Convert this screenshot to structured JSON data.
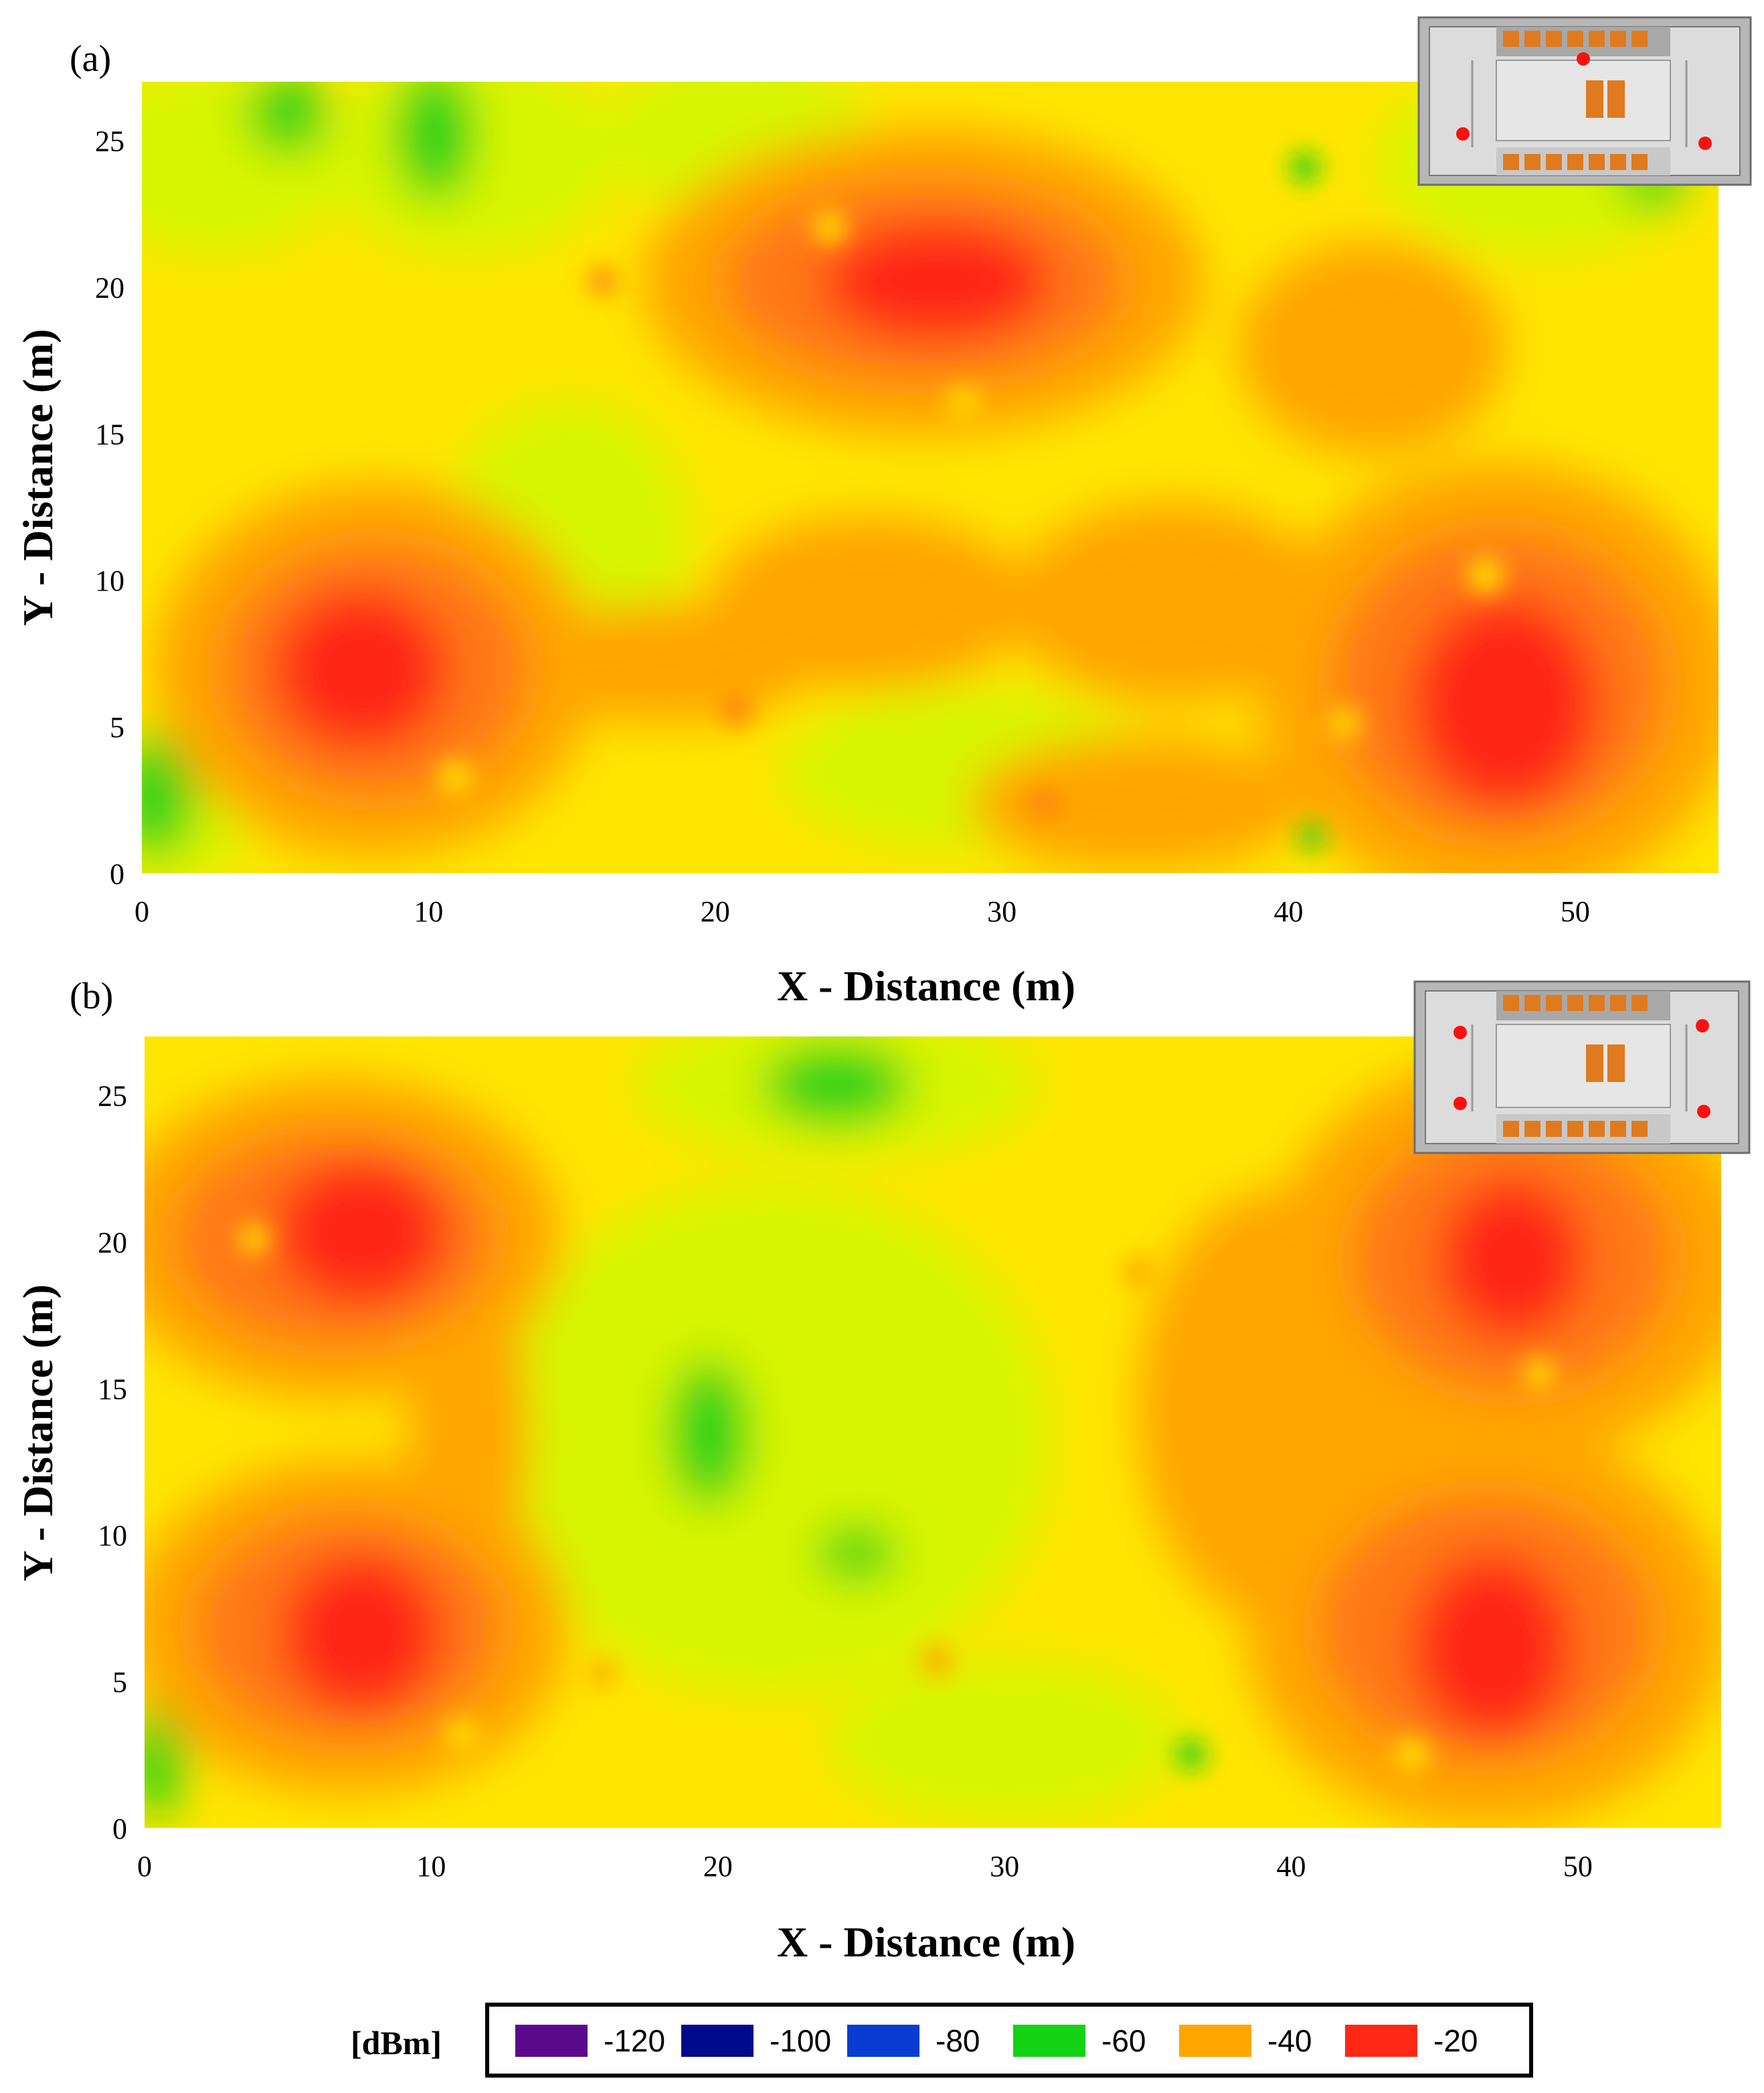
{
  "colors": {
    "purple": "#5b0a8c",
    "navy": "#000a8c",
    "blue": "#0a3cd2",
    "green": "#14d214",
    "yellow_green": "#d7f500",
    "yellow": "#ffe600",
    "orange": "#ffa500",
    "dark_orange": "#ff7814",
    "red": "#ff2814"
  },
  "chart_data": [
    {
      "type": "heatmap",
      "panel_label": "(a)",
      "xlabel": "X - Distance (m)",
      "ylabel": "Y - Distance (m)",
      "xlim": [
        0,
        55
      ],
      "ylim": [
        0,
        27
      ],
      "xticks": [
        0,
        10,
        20,
        30,
        40,
        50
      ],
      "yticks": [
        0,
        5,
        10,
        15,
        20,
        25
      ],
      "units": "dBm",
      "strong_signal_regions": [
        {
          "x": 8,
          "y": 7,
          "value": -20
        },
        {
          "x": 28,
          "y": 20,
          "value": -20
        },
        {
          "x": 47,
          "y": 6,
          "value": -20
        }
      ],
      "weak_signal_regions": [
        {
          "x": 11,
          "y": 24,
          "value": -60
        },
        {
          "x": 5,
          "y": 25,
          "value": -60
        },
        {
          "x": 0,
          "y": 2,
          "value": -60
        }
      ],
      "inset": {
        "type": "floor-plan",
        "access_points": 3
      }
    },
    {
      "type": "heatmap",
      "panel_label": "(b)",
      "xlabel": "X - Distance (m)",
      "ylabel": "Y - Distance (m)",
      "xlim": [
        0,
        55
      ],
      "ylim": [
        0,
        27
      ],
      "xticks": [
        0,
        10,
        20,
        30,
        40,
        50
      ],
      "yticks": [
        0,
        5,
        10,
        15,
        20,
        25
      ],
      "units": "dBm",
      "strong_signal_regions": [
        {
          "x": 8,
          "y": 20,
          "value": -20
        },
        {
          "x": 8,
          "y": 7,
          "value": -20
        },
        {
          "x": 47,
          "y": 20,
          "value": -20
        },
        {
          "x": 47,
          "y": 6,
          "value": -20
        }
      ],
      "weak_signal_regions": [
        {
          "x": 20,
          "y": 14,
          "value": -60
        },
        {
          "x": 25,
          "y": 26,
          "value": -60
        },
        {
          "x": 0,
          "y": 3,
          "value": -60
        }
      ],
      "inset": {
        "type": "floor-plan",
        "access_points": 4
      }
    }
  ],
  "legend": {
    "unit_label": "[dBm]",
    "items": [
      {
        "label": "-120",
        "color": "#5b0a8c"
      },
      {
        "label": "-100",
        "color": "#000a8c"
      },
      {
        "label": "-80",
        "color": "#0a3cd2"
      },
      {
        "label": "-60",
        "color": "#14d214"
      },
      {
        "label": "-40",
        "color": "#ffa500"
      },
      {
        "label": "-20",
        "color": "#ff2814"
      }
    ]
  }
}
